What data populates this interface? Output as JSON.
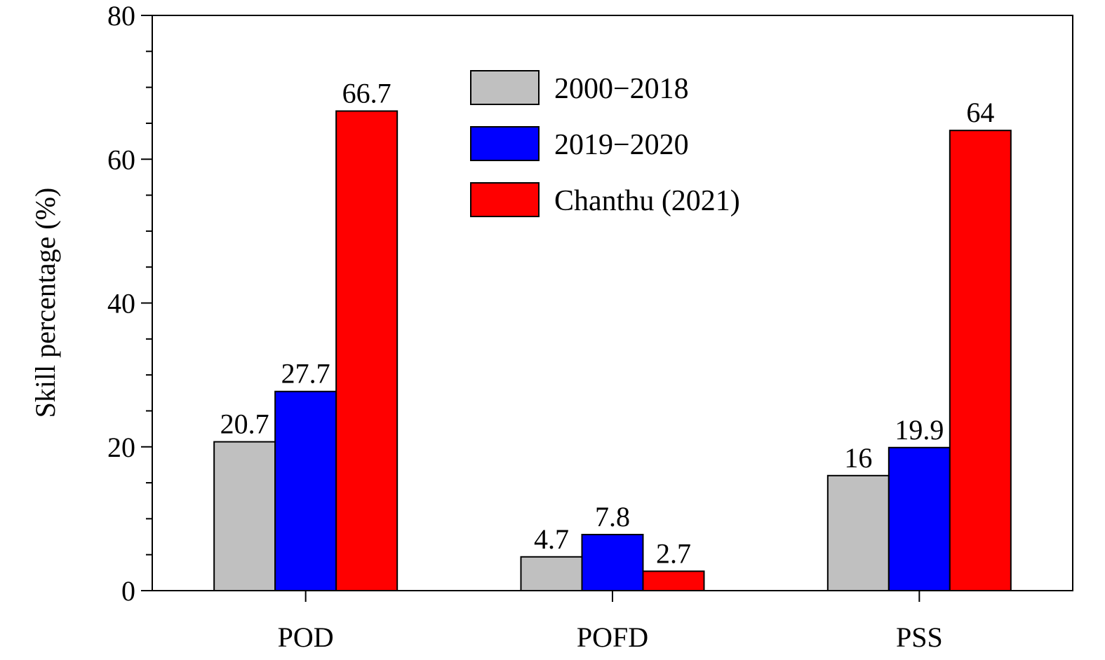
{
  "chart_data": {
    "type": "bar",
    "title": "",
    "xlabel": "",
    "ylabel": "Skill percentage (%)",
    "ylim": [
      0,
      80
    ],
    "yticks": [
      0,
      20,
      40,
      60,
      80
    ],
    "yticks_minor_step": 5,
    "grid": false,
    "legend_position": "top-center",
    "categories": [
      "POD",
      "POFD",
      "PSS"
    ],
    "series": [
      {
        "name": "2000−2018",
        "color": "#c0c0c0",
        "values": [
          20.7,
          4.7,
          16
        ],
        "labels": [
          "20.7",
          "4.7",
          "16"
        ]
      },
      {
        "name": "2019−2020",
        "color": "#0000ff",
        "values": [
          27.7,
          7.8,
          19.9
        ],
        "labels": [
          "27.7",
          "7.8",
          "19.9"
        ]
      },
      {
        "name": "Chanthu (2021)",
        "color": "#ff0000",
        "values": [
          66.7,
          2.7,
          64
        ],
        "labels": [
          "66.7",
          "2.7",
          "64"
        ]
      }
    ]
  }
}
